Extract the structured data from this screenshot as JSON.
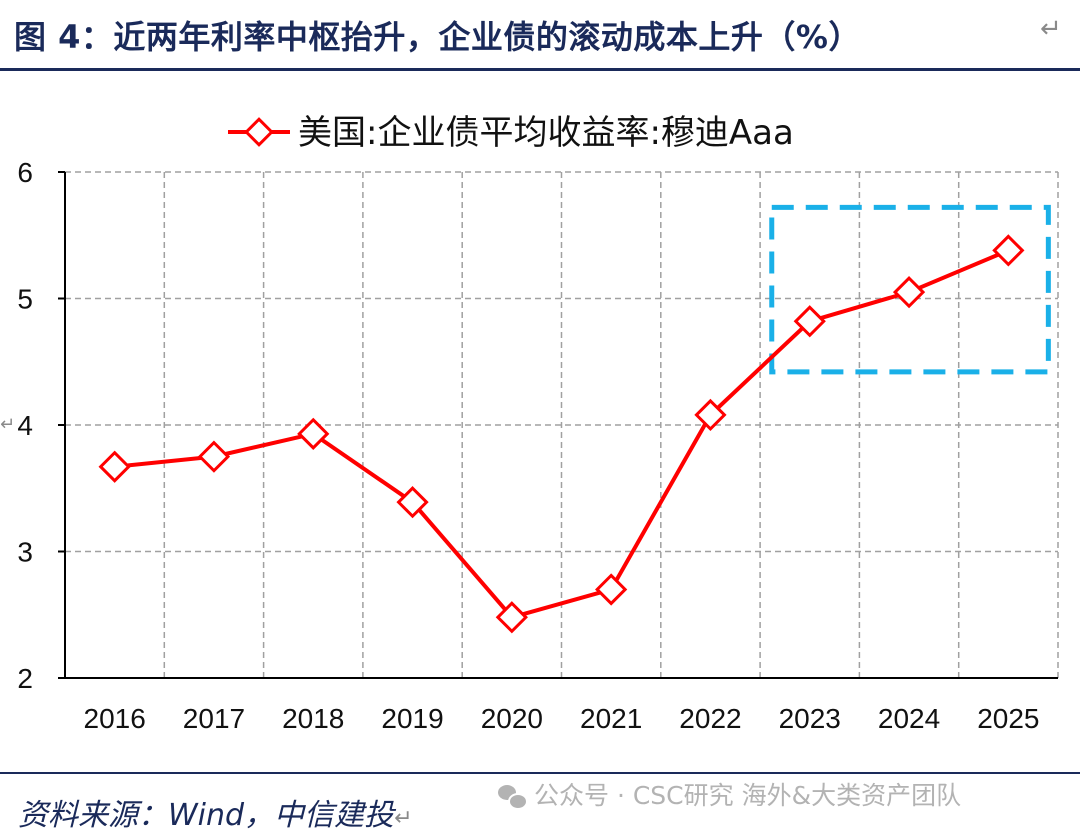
{
  "figure": {
    "title": "图 4：近两年利率中枢抬升，企业债的滚动成本上升（%）",
    "title_return_mark": "↵"
  },
  "footer": {
    "source_label": "资料来源：",
    "source_text": "Wind，中信建投",
    "return_mark": "↵"
  },
  "watermark": {
    "icon": "wechat-icon",
    "text": "公众号 · CSC研究 海外&大类资产团队"
  },
  "side_mark": "↵",
  "chart_data": {
    "type": "line",
    "title": "",
    "xlabel": "",
    "ylabel": "",
    "categories": [
      "2016",
      "2017",
      "2018",
      "2019",
      "2020",
      "2021",
      "2022",
      "2023",
      "2024",
      "2025"
    ],
    "series": [
      {
        "name": "美国:企业债平均收益率:穆迪Aaa",
        "values": [
          3.67,
          3.75,
          3.93,
          3.39,
          2.48,
          2.7,
          4.08,
          4.82,
          5.05,
          5.38
        ],
        "color": "#ff0000",
        "marker": "diamond-open"
      }
    ],
    "yticks": [
      "2",
      "3",
      "4",
      "5",
      "6"
    ],
    "ylim": [
      2,
      6
    ],
    "grid": true,
    "grid_style": "dashed",
    "legend_position": "top-center",
    "highlight": {
      "style": "dashed-rectangle",
      "color": "#1ab0e8",
      "x_from": "2023",
      "x_to": "2025",
      "y_from": 4.42,
      "y_to": 5.72
    }
  }
}
